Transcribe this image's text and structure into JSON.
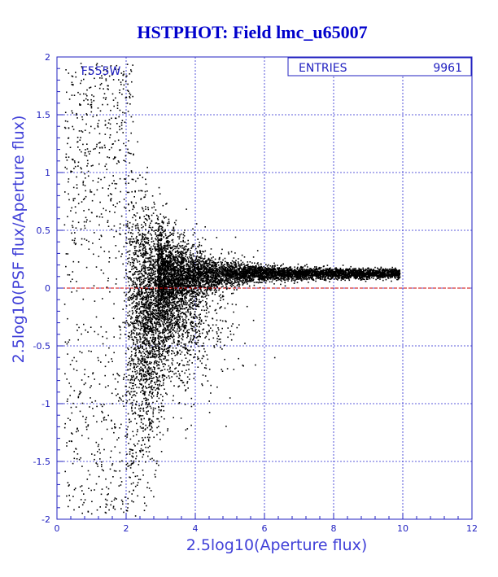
{
  "chart_data": {
    "type": "scatter",
    "title": "HSTPHOT: Field lmc_u65007",
    "xlabel": "2.5log10(Aperture flux)",
    "ylabel": "2.5log10(PSF flux/Aperture flux)",
    "xlim": [
      0,
      12
    ],
    "ylim": [
      -2,
      2
    ],
    "x_ticks": [
      "0",
      "2",
      "4",
      "6",
      "8",
      "10",
      "12"
    ],
    "y_ticks": [
      "2",
      "1.5",
      "1",
      "0.5",
      "0",
      "-0.5",
      "-1",
      "-1.5",
      "-2"
    ],
    "grid": true,
    "filter_label": "F555W",
    "stats_box": {
      "label": "ENTRIES",
      "value": "9961",
      "entries": 9961
    },
    "reference_line": {
      "y": 0,
      "color": "#cc0000",
      "style": "dashed"
    },
    "point_color": "#000000",
    "axis_color": "#2020c0",
    "grid_color": "#2a2ad0",
    "distribution": {
      "description": "Dense horizontal sequence near y~0.13 for x between 3 and 10, broad scatter for x between 2 and 4",
      "core_sequence": {
        "x_range": [
          3,
          9.9
        ],
        "y_center": 0.13
      },
      "broad_cloud": {
        "x_range": [
          1.8,
          4.5
        ],
        "y_range": [
          -2,
          0.9
        ]
      },
      "faint_tail": {
        "x_range": [
          0.2,
          2
        ],
        "y_range": [
          -1.9,
          2
        ]
      }
    }
  }
}
